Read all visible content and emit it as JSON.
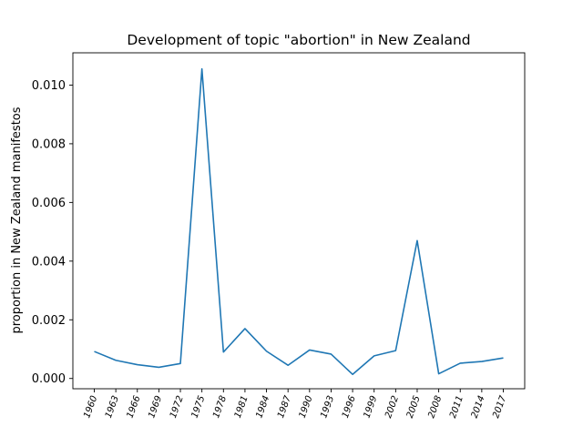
{
  "chart_data": {
    "type": "line",
    "title": "Development of topic \"abortion\" in New Zealand",
    "xlabel": "",
    "ylabel": "proportion in New Zealand manifestos",
    "x": [
      "1960",
      "1963",
      "1966",
      "1969",
      "1972",
      "1975",
      "1978",
      "1981",
      "1984",
      "1987",
      "1990",
      "1993",
      "1996",
      "1999",
      "2002",
      "2005",
      "2008",
      "2011",
      "2014",
      "2017"
    ],
    "series": [
      {
        "values": [
          0.00092,
          0.00062,
          0.00047,
          0.00038,
          0.00051,
          0.01055,
          0.0009,
          0.0017,
          0.00093,
          0.00045,
          0.00097,
          0.00083,
          0.00014,
          0.00077,
          0.00095,
          0.0047,
          0.00016,
          0.00052,
          0.00058,
          0.0007
        ],
        "color": "#1f77b4"
      }
    ],
    "yticks": [
      "0.000",
      "0.002",
      "0.004",
      "0.006",
      "0.008",
      "0.010"
    ],
    "ylim": [
      -0.00035,
      0.0111
    ],
    "grid": false,
    "legend": "none"
  }
}
